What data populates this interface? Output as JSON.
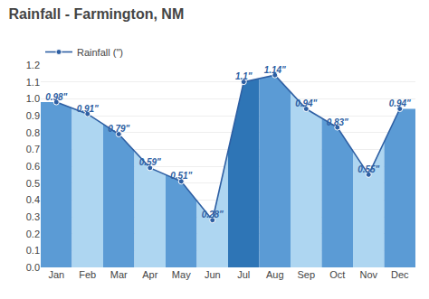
{
  "chart_data": {
    "type": "line",
    "title": "Rainfall - Farmington, NM",
    "categories": [
      "Jan",
      "Feb",
      "Mar",
      "Apr",
      "May",
      "Jun",
      "Jul",
      "Aug",
      "Sep",
      "Oct",
      "Nov",
      "Dec"
    ],
    "series": [
      {
        "name": "Rainfall (\")",
        "color": "#2e5fa3",
        "values": [
          0.98,
          0.91,
          0.79,
          0.59,
          0.51,
          0.28,
          1.1,
          1.14,
          0.94,
          0.83,
          0.55,
          0.94
        ],
        "value_labels": [
          "0.98\"",
          "0.91\"",
          "0.79\"",
          "0.59\"",
          "0.51\"",
          "0.28\"",
          "1.1\"",
          "1.14\"",
          "0.94\"",
          "0.83\"",
          "0.55\"",
          "0.94\""
        ],
        "colors": [
          "#5b9bd5",
          "#aed6f1",
          "#5b9bd5",
          "#aed6f1",
          "#5b9bd5",
          "#aed6f1",
          "#2e75b6",
          "#5b9bd5",
          "#aed6f1",
          "#5b9bd5",
          "#aed6f1",
          "#5b9bd5"
        ]
      }
    ],
    "marker": "circle",
    "data_labels": true,
    "ylim": [
      0,
      1.2
    ],
    "yticks": [
      {
        "value": 0,
        "label": "0.0"
      },
      0.1,
      0.2,
      0.3,
      0.4,
      0.5,
      0.6,
      0.7,
      0.8,
      0.9,
      {
        "value": 1,
        "label": "1.0"
      },
      1.1,
      1.2
    ],
    "grid": true,
    "legend": "upper left"
  }
}
